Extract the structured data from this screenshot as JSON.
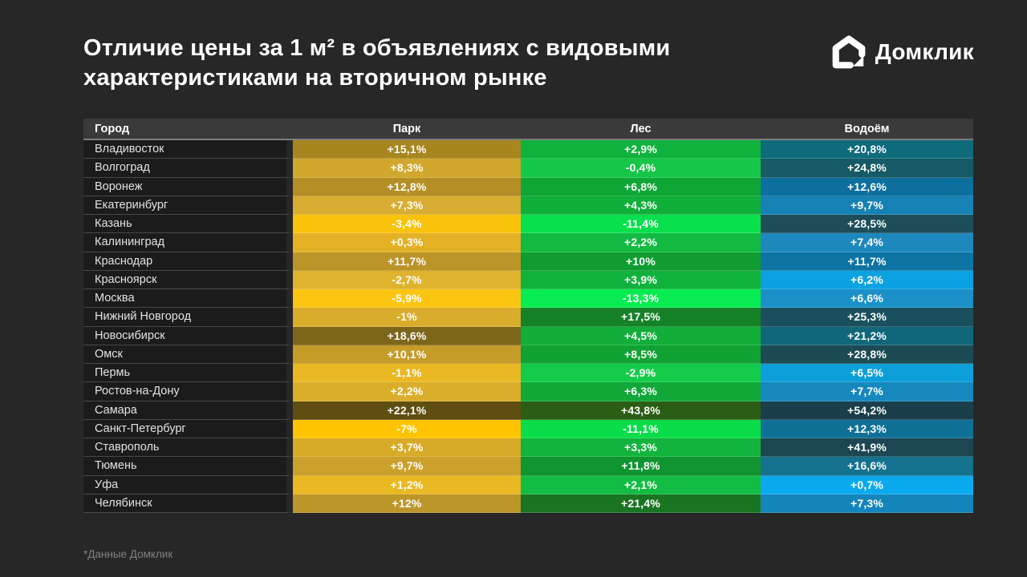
{
  "title": {
    "line1": "Отличие цены за 1 м² в объявлениях с видовыми",
    "line2": "характеристиками на вторичном рынке"
  },
  "logo": {
    "text": "Домклик"
  },
  "footnote": "*Данные Домклик",
  "table": {
    "columns": [
      "Город",
      "Парк",
      "Лес",
      "Водоём"
    ],
    "rows": [
      {
        "city": "Владивосток",
        "cells": [
          {
            "text": "+15,1%",
            "bg": "#A8861F"
          },
          {
            "text": "+2,9%",
            "bg": "#0FB23C"
          },
          {
            "text": "+20,8%",
            "bg": "#0E6B7B"
          }
        ]
      },
      {
        "city": "Волгоград",
        "cells": [
          {
            "text": "+8,3%",
            "bg": "#D2A72D"
          },
          {
            "text": "-0,4%",
            "bg": "#15C648"
          },
          {
            "text": "+24,8%",
            "bg": "#155A64"
          }
        ]
      },
      {
        "city": "Воронеж",
        "cells": [
          {
            "text": "+12,8%",
            "bg": "#B58F26"
          },
          {
            "text": "+6,8%",
            "bg": "#0FA636"
          },
          {
            "text": "+12,6%",
            "bg": "#0D6F9E"
          }
        ]
      },
      {
        "city": "Екатеринбург",
        "cells": [
          {
            "text": "+7,3%",
            "bg": "#D8AD31"
          },
          {
            "text": "+4,3%",
            "bg": "#10AF3A"
          },
          {
            "text": "+9,7%",
            "bg": "#1581B4"
          }
        ]
      },
      {
        "city": "Казань",
        "cells": [
          {
            "text": "-3,4%",
            "bg": "#FAC30B"
          },
          {
            "text": "-11,4%",
            "bg": "#09E04D"
          },
          {
            "text": "+28,5%",
            "bg": "#1D4D59"
          }
        ]
      },
      {
        "city": "Калининград",
        "cells": [
          {
            "text": "+0,3%",
            "bg": "#E3B026"
          },
          {
            "text": "+2,2%",
            "bg": "#13BA41"
          },
          {
            "text": "+7,4%",
            "bg": "#1E88BC"
          }
        ]
      },
      {
        "city": "Краснодар",
        "cells": [
          {
            "text": "+11,7%",
            "bg": "#BB9428"
          },
          {
            "text": "+10%",
            "bg": "#0F9C30"
          },
          {
            "text": "+11,7%",
            "bg": "#0E74A4"
          }
        ]
      },
      {
        "city": "Красноярск",
        "cells": [
          {
            "text": "-2,7%",
            "bg": "#DFB32E"
          },
          {
            "text": "+3,9%",
            "bg": "#10B23C"
          },
          {
            "text": "+6,2%",
            "bg": "#0BA2E2"
          }
        ]
      },
      {
        "city": "Москва",
        "cells": [
          {
            "text": "-5,9%",
            "bg": "#FCC512"
          },
          {
            "text": "-13,3%",
            "bg": "#07EC51"
          },
          {
            "text": "+6,6%",
            "bg": "#1B90C8"
          }
        ]
      },
      {
        "city": "Нижний Новгород",
        "cells": [
          {
            "text": "-1%",
            "bg": "#D9AC2B"
          },
          {
            "text": "+17,5%",
            "bg": "#168227"
          },
          {
            "text": "+25,3%",
            "bg": "#1A505E"
          }
        ]
      },
      {
        "city": "Новосибирск",
        "cells": [
          {
            "text": "+18,6%",
            "bg": "#7D651A"
          },
          {
            "text": "+4,5%",
            "bg": "#12AE39"
          },
          {
            "text": "+21,2%",
            "bg": "#11677A"
          }
        ]
      },
      {
        "city": "Омск",
        "cells": [
          {
            "text": "+10,1%",
            "bg": "#C59B2A"
          },
          {
            "text": "+8,5%",
            "bg": "#10A233"
          },
          {
            "text": "+28,8%",
            "bg": "#1C4A55"
          }
        ]
      },
      {
        "city": "Пермь",
        "cells": [
          {
            "text": "-1,1%",
            "bg": "#E9B822"
          },
          {
            "text": "-2,9%",
            "bg": "#14CC49"
          },
          {
            "text": "+6,5%",
            "bg": "#0C9FD9"
          }
        ]
      },
      {
        "city": "Ростов-на-Дону",
        "cells": [
          {
            "text": "+2,2%",
            "bg": "#DAAE2B"
          },
          {
            "text": "+6,3%",
            "bg": "#11A837"
          },
          {
            "text": "+7,7%",
            "bg": "#1588BE"
          }
        ]
      },
      {
        "city": "Самара",
        "cells": [
          {
            "text": "+22,1%",
            "bg": "#5F4D12"
          },
          {
            "text": "+43,8%",
            "bg": "#2B5D14"
          },
          {
            "text": "+54,2%",
            "bg": "#1A3F4A"
          }
        ]
      },
      {
        "city": "Санкт-Петербург",
        "cells": [
          {
            "text": "-7%",
            "bg": "#FFC401"
          },
          {
            "text": "-11,1%",
            "bg": "#0ADC4A"
          },
          {
            "text": "+12,3%",
            "bg": "#0F7096"
          }
        ]
      },
      {
        "city": "Ставрополь",
        "cells": [
          {
            "text": "+3,7%",
            "bg": "#D7AA28"
          },
          {
            "text": "+3,3%",
            "bg": "#12B43D"
          },
          {
            "text": "+41,9%",
            "bg": "#1C4752"
          }
        ]
      },
      {
        "city": "Тюмень",
        "cells": [
          {
            "text": "+9,7%",
            "bg": "#CBA02B"
          },
          {
            "text": "+11,8%",
            "bg": "#109531"
          },
          {
            "text": "+16,6%",
            "bg": "#15728E"
          }
        ]
      },
      {
        "city": "Уфа",
        "cells": [
          {
            "text": "+1,2%",
            "bg": "#E9B823"
          },
          {
            "text": "+2,1%",
            "bg": "#13BC42"
          },
          {
            "text": "+0,7%",
            "bg": "#0BAAEF"
          }
        ]
      },
      {
        "city": "Челябинск",
        "cells": [
          {
            "text": "+12%",
            "bg": "#BD9629"
          },
          {
            "text": "+21,4%",
            "bg": "#1A7522"
          },
          {
            "text": "+7,3%",
            "bg": "#1485BB"
          }
        ]
      }
    ]
  },
  "colors": {
    "background": "#272727",
    "header_row_bg": "#3A3A3A",
    "city_cell_bg": "#1B1B1B",
    "park_scale_bright": "#FFC401",
    "park_scale_dark": "#5F4D12",
    "forest_scale_bright": "#07EC51",
    "forest_scale_dark": "#2B5D14",
    "water_scale_bright": "#0BAAEF",
    "water_scale_dark": "#1A3F4A"
  },
  "chart_data": {
    "type": "heatmap",
    "title": "Отличие цены за 1 м² в объявлениях с видовыми характеристиками на вторичном рынке",
    "unit": "%",
    "categories": [
      "Владивосток",
      "Волгоград",
      "Воронеж",
      "Екатеринбург",
      "Казань",
      "Калининград",
      "Краснодар",
      "Красноярск",
      "Москва",
      "Нижний Новгород",
      "Новосибирск",
      "Омск",
      "Пермь",
      "Ростов-на-Дону",
      "Самара",
      "Санкт-Петербург",
      "Ставрополь",
      "Тюмень",
      "Уфа",
      "Челябинск"
    ],
    "series": [
      {
        "name": "Парк",
        "values": [
          15.1,
          8.3,
          12.8,
          7.3,
          -3.4,
          0.3,
          11.7,
          -2.7,
          -5.9,
          -1,
          18.6,
          10.1,
          -1.1,
          2.2,
          22.1,
          -7,
          3.7,
          9.7,
          1.2,
          12
        ]
      },
      {
        "name": "Лес",
        "values": [
          2.9,
          -0.4,
          6.8,
          4.3,
          -11.4,
          2.2,
          10,
          3.9,
          -13.3,
          17.5,
          4.5,
          8.5,
          -2.9,
          6.3,
          43.8,
          -11.1,
          3.3,
          11.8,
          2.1,
          21.4
        ]
      },
      {
        "name": "Водоём",
        "values": [
          20.8,
          24.8,
          12.6,
          9.7,
          28.5,
          7.4,
          11.7,
          6.2,
          6.6,
          25.3,
          21.2,
          28.8,
          6.5,
          7.7,
          54.2,
          12.3,
          41.9,
          16.6,
          0.7,
          7.3
        ]
      }
    ],
    "source": "*Данные Домклик",
    "color_encoding": "darker shade = higher price premium, per column"
  }
}
